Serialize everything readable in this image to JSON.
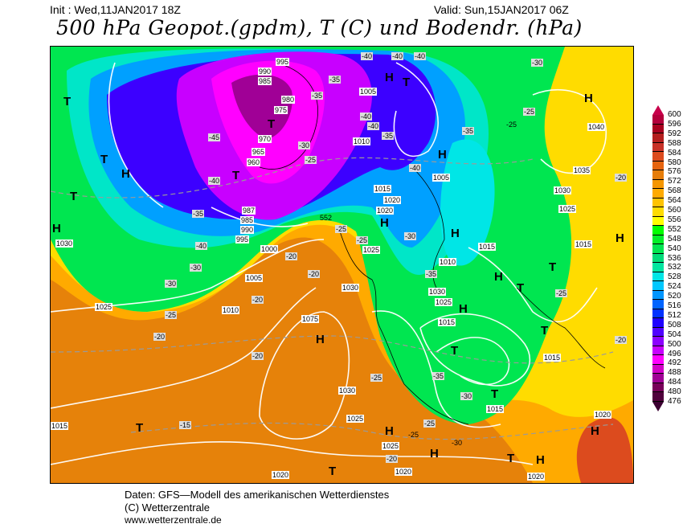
{
  "header": {
    "init": "Init : Wed,11JAN2017 18Z",
    "valid": "Valid: Sun,15JAN2017 06Z",
    "title": "500 hPa Geopot.(gpdm), T (C) und Bodendr. (hPa)"
  },
  "colorbar": {
    "ticks": [
      "600",
      "596",
      "592",
      "588",
      "584",
      "580",
      "576",
      "572",
      "568",
      "564",
      "560",
      "556",
      "552",
      "548",
      "540",
      "536",
      "532",
      "528",
      "524",
      "520",
      "516",
      "512",
      "508",
      "504",
      "500",
      "496",
      "492",
      "488",
      "484",
      "480",
      "476"
    ],
    "colors": [
      "#b4003c",
      "#a8001e",
      "#b41e1e",
      "#c83228",
      "#dc4b1e",
      "#e6640f",
      "#e67d0a",
      "#f59600",
      "#ffaa00",
      "#ffc300",
      "#ffdc00",
      "#ffff00",
      "#00ff00",
      "#00f028",
      "#00e650",
      "#00dc78",
      "#00e6a0",
      "#00e6e6",
      "#00c8ff",
      "#0096ff",
      "#0064ff",
      "#0032ff",
      "#1e00ff",
      "#5000ff",
      "#8c00ff",
      "#c800ff",
      "#ff00ff",
      "#d200c8",
      "#a00096",
      "#78005a",
      "#50003c"
    ]
  },
  "map": {
    "pressure_labels": [
      "995",
      "990",
      "985",
      "980",
      "975",
      "970",
      "965",
      "960",
      "987",
      "985",
      "990",
      "995",
      "1000",
      "1005",
      "1010",
      "1015",
      "1020",
      "1025",
      "1030",
      "1035",
      "1040",
      "1005",
      "1010",
      "1015",
      "1020",
      "1025",
      "1030",
      "1025",
      "1030",
      "1015",
      "1010",
      "1005",
      "1015",
      "1075",
      "1030",
      "1025",
      "1025",
      "1020",
      "1020",
      "1020",
      "1015",
      "1015",
      "1030",
      "1025",
      "1015",
      "1020",
      "552"
    ],
    "temp_labels": [
      "-40",
      "-40",
      "-40",
      "-35",
      "-35",
      "-40",
      "-40",
      "-35",
      "-30",
      "-25",
      "-45",
      "-40",
      "-35",
      "-40",
      "-30",
      "-30",
      "-25",
      "-20",
      "-20",
      "-20",
      "-25",
      "-20",
      "-20",
      "-25",
      "-30",
      "-35",
      "-40",
      "-35",
      "-30",
      "-25",
      "-25",
      "-25",
      "-20",
      "-20",
      "-15",
      "-25",
      "-35",
      "-30",
      "-25",
      "-20",
      "-30",
      "-25"
    ],
    "pressure_systems": [
      "T",
      "T",
      "H",
      "T",
      "H",
      "T",
      "H",
      "H",
      "T",
      "H",
      "H",
      "H",
      "H",
      "T",
      "T",
      "T",
      "H",
      "H",
      "T",
      "H",
      "T",
      "H",
      "T",
      "H",
      "T",
      "T",
      "H",
      "H",
      "T"
    ]
  },
  "footer": {
    "line1": "Daten: GFS—Modell des amerikanischen Wetterdienstes",
    "line2": "(C) Wetterzentrale",
    "line3": "www.wetterzentrale.de"
  }
}
